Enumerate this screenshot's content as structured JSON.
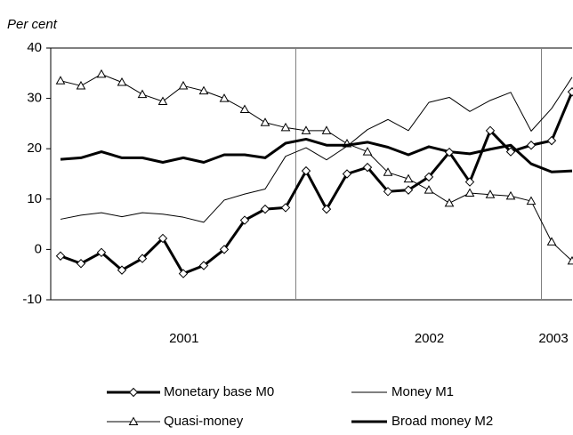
{
  "chart_data": {
    "type": "line",
    "y_axis_label": "Per cent",
    "ylim": [
      -10,
      40
    ],
    "yticks": [
      -10,
      0,
      10,
      20,
      30,
      40
    ],
    "categories": [
      null,
      null,
      null,
      null,
      null,
      null,
      null,
      null,
      null,
      null,
      null,
      null,
      null,
      null,
      null,
      null,
      null,
      null,
      null,
      null,
      null,
      null,
      null,
      null,
      null,
      null
    ],
    "year_groups": [
      {
        "label": "2001",
        "count": 12
      },
      {
        "label": "2002",
        "count": 12
      },
      {
        "label": "2003",
        "count": 2
      }
    ],
    "series": [
      {
        "name": "Monetary base M0",
        "color": "#000000",
        "line_width": 3,
        "marker": "diamond",
        "values": [
          -1.3,
          -2.8,
          -0.6,
          -4.1,
          -1.8,
          2.2,
          -4.8,
          -3.2,
          0,
          5.8,
          8,
          8.3,
          15.6,
          8,
          15,
          16.3,
          11.5,
          11.8,
          14.4,
          19.3,
          13.4,
          23.6,
          19.4,
          20.7,
          21.6,
          31.3
        ]
      },
      {
        "name": "Money M1",
        "color": "#000000",
        "line_width": 1,
        "marker": "none",
        "values": [
          6,
          6.8,
          7.3,
          6.5,
          7.3,
          7,
          6.4,
          5.4,
          9.8,
          11,
          12,
          18.5,
          20.2,
          17.8,
          20.5,
          23.8,
          25.8,
          23.6,
          29.2,
          30.2,
          27.4,
          29.6,
          31.2,
          23.5,
          28,
          34.2
        ]
      },
      {
        "name": "Quasi-money",
        "color": "#000000",
        "line_width": 1,
        "marker": "triangle",
        "values": [
          33.5,
          32.5,
          34.8,
          33.2,
          30.8,
          29.4,
          32.5,
          31.5,
          30,
          27.8,
          25.2,
          24.2,
          23.6,
          23.6,
          21,
          19.4,
          15.3,
          14,
          11.8,
          9.2,
          11.2,
          10.9,
          10.6,
          9.6,
          1.5,
          -2.3
        ]
      },
      {
        "name": "Broad money M2",
        "color": "#000000",
        "line_width": 3,
        "marker": "none",
        "values": [
          17.9,
          18.2,
          19.4,
          18.2,
          18.2,
          17.3,
          18.2,
          17.3,
          18.8,
          18.8,
          18.2,
          21.1,
          21.9,
          20.7,
          20.7,
          21.3,
          20.3,
          18.8,
          20.4,
          19.4,
          19,
          19.9,
          20.7,
          17,
          15.4,
          15.6
        ]
      }
    ]
  }
}
